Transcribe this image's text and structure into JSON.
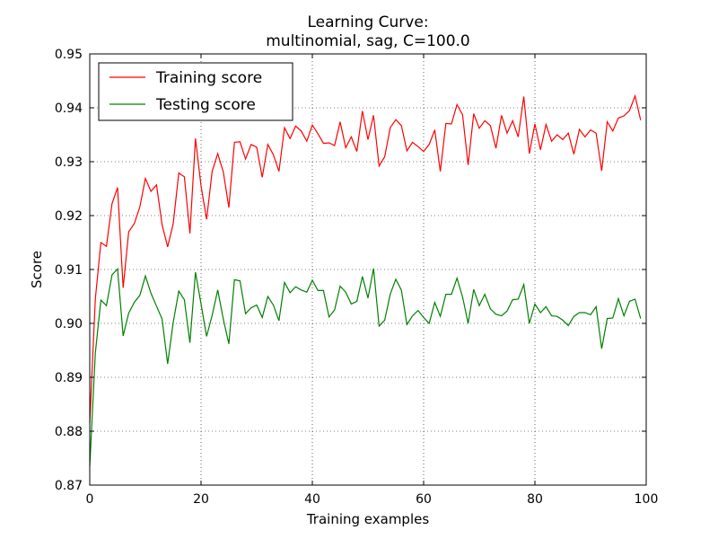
{
  "chart_data": {
    "type": "line",
    "title": "Learning Curve:",
    "subtitle": "multinomial, sag, C=100.0",
    "xlabel": "Training examples",
    "ylabel": "Score",
    "xlim": [
      0,
      100
    ],
    "ylim": [
      0.87,
      0.95
    ],
    "xticks": [
      0,
      20,
      40,
      60,
      80,
      100
    ],
    "xtick_labels": [
      "0",
      "20",
      "40",
      "60",
      "80",
      "100"
    ],
    "yticks": [
      0.87,
      0.88,
      0.89,
      0.9,
      0.91,
      0.92,
      0.93,
      0.94,
      0.95
    ],
    "ytick_labels": [
      "0.87",
      "0.88",
      "0.89",
      "0.90",
      "0.91",
      "0.92",
      "0.93",
      "0.94",
      "0.95"
    ],
    "grid": true,
    "legend_position": "top-left",
    "x": [
      0,
      1,
      2,
      3,
      4,
      5,
      6,
      7,
      8,
      9,
      10,
      11,
      12,
      13,
      14,
      15,
      16,
      17,
      18,
      19,
      20,
      21,
      22,
      23,
      24,
      25,
      26,
      27,
      28,
      29,
      30,
      31,
      32,
      33,
      34,
      35,
      36,
      37,
      38,
      39,
      40,
      41,
      42,
      43,
      44,
      45,
      46,
      47,
      48,
      49,
      50,
      51,
      52,
      53,
      54,
      55,
      56,
      57,
      58,
      59,
      60,
      61,
      62,
      63,
      64,
      65,
      66,
      67,
      68,
      69,
      70,
      71,
      72,
      73,
      74,
      75,
      76,
      77,
      78,
      79,
      80,
      81,
      82,
      83,
      84,
      85,
      86,
      87,
      88,
      89,
      90,
      91,
      92,
      93,
      94,
      95,
      96,
      97,
      98,
      99
    ],
    "series": [
      {
        "name": "Training score",
        "color": "#ff0000",
        "values": [
          0.8815,
          0.9045,
          0.915,
          0.9143,
          0.9222,
          0.9252,
          0.9066,
          0.917,
          0.9185,
          0.9216,
          0.9269,
          0.9245,
          0.9257,
          0.9183,
          0.9142,
          0.9185,
          0.9279,
          0.9272,
          0.9167,
          0.9343,
          0.9255,
          0.9193,
          0.9282,
          0.9315,
          0.9281,
          0.9215,
          0.9336,
          0.9337,
          0.9305,
          0.9332,
          0.9327,
          0.9271,
          0.9332,
          0.9313,
          0.9282,
          0.9363,
          0.9343,
          0.9366,
          0.9357,
          0.9338,
          0.9368,
          0.9352,
          0.9334,
          0.9335,
          0.933,
          0.9374,
          0.9326,
          0.9346,
          0.9319,
          0.9394,
          0.9341,
          0.9386,
          0.9292,
          0.9309,
          0.9363,
          0.9378,
          0.9367,
          0.932,
          0.9336,
          0.9328,
          0.9319,
          0.9332,
          0.9359,
          0.9282,
          0.9371,
          0.937,
          0.9406,
          0.9387,
          0.9294,
          0.9389,
          0.9362,
          0.9376,
          0.9367,
          0.9325,
          0.9386,
          0.9353,
          0.9376,
          0.9346,
          0.9421,
          0.9315,
          0.937,
          0.9322,
          0.9369,
          0.9338,
          0.935,
          0.9341,
          0.9353,
          0.9314,
          0.936,
          0.9346,
          0.9359,
          0.9353,
          0.9283,
          0.9374,
          0.9357,
          0.9381,
          0.9385,
          0.9395,
          0.9422,
          0.9377
        ]
      },
      {
        "name": "Testing score",
        "color": "#008000",
        "values": [
          0.8735,
          0.8945,
          0.9043,
          0.9033,
          0.909,
          0.9101,
          0.8977,
          0.9019,
          0.9039,
          0.9052,
          0.9088,
          0.9056,
          0.9032,
          0.9008,
          0.8925,
          0.9002,
          0.906,
          0.9044,
          0.8964,
          0.9095,
          0.9036,
          0.8976,
          0.9015,
          0.9062,
          0.9008,
          0.8962,
          0.9081,
          0.9079,
          0.9018,
          0.9029,
          0.9034,
          0.9011,
          0.905,
          0.9034,
          0.9005,
          0.9076,
          0.9057,
          0.9068,
          0.9062,
          0.9058,
          0.908,
          0.9061,
          0.9061,
          0.9012,
          0.9025,
          0.9069,
          0.9058,
          0.9036,
          0.9041,
          0.9087,
          0.9047,
          0.9102,
          0.8995,
          0.9006,
          0.9054,
          0.9082,
          0.9062,
          0.8998,
          0.9014,
          0.9024,
          0.9011,
          0.9,
          0.9039,
          0.9013,
          0.9054,
          0.9054,
          0.9084,
          0.9049,
          0.9,
          0.9063,
          0.9033,
          0.9054,
          0.9027,
          0.9017,
          0.9014,
          0.9023,
          0.9044,
          0.9045,
          0.9072,
          0.9,
          0.9036,
          0.902,
          0.9031,
          0.9014,
          0.9013,
          0.9006,
          0.8996,
          0.9013,
          0.902,
          0.902,
          0.9016,
          0.9031,
          0.8953,
          0.9009,
          0.901,
          0.9046,
          0.9014,
          0.9041,
          0.9045,
          0.9009
        ]
      }
    ]
  }
}
